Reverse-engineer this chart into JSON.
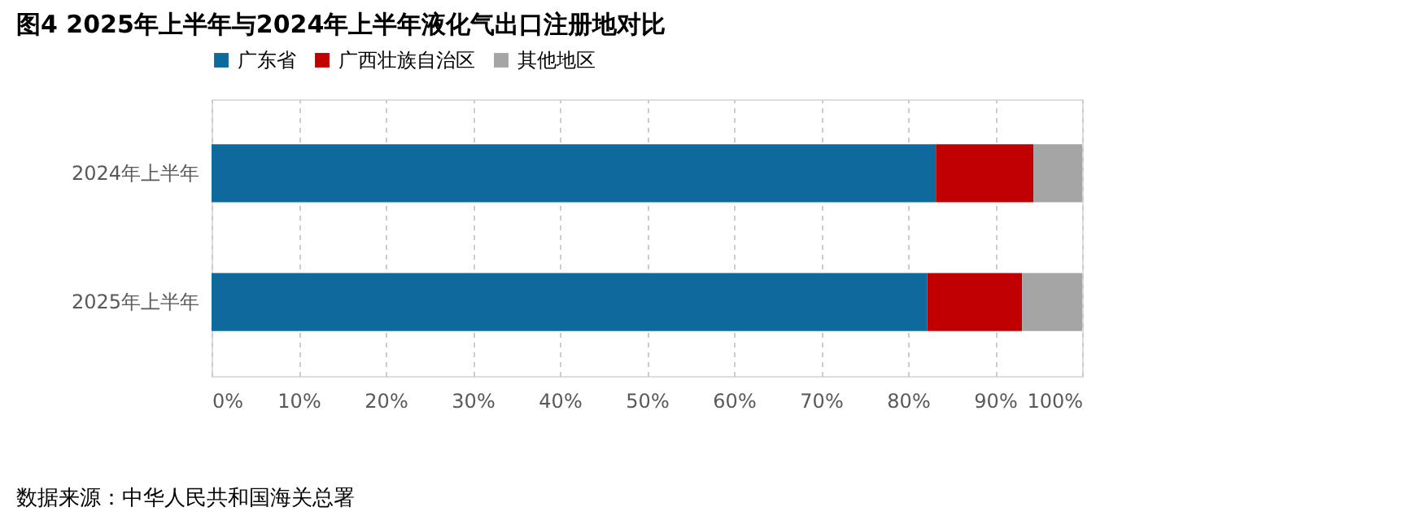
{
  "chart_data": {
    "type": "bar",
    "orientation": "horizontal",
    "stacked": true,
    "title": "图4 2025年上半年与2024年上半年液化气出口注册地对比",
    "categories": [
      "2024年上半年",
      "2025年上半年"
    ],
    "series": [
      {
        "name": "广东省",
        "color": "#0e6a9c",
        "values": [
          83.2,
          82.2
        ]
      },
      {
        "name": "广西壮族自治区",
        "color": "#c00000",
        "values": [
          11.2,
          10.9
        ]
      },
      {
        "name": "其他地区",
        "color": "#a5a5a5",
        "values": [
          5.6,
          6.9
        ]
      }
    ],
    "xlim": [
      0,
      100
    ],
    "xticks": [
      {
        "value": 0,
        "label": "0%"
      },
      {
        "value": 10,
        "label": "10%"
      },
      {
        "value": 20,
        "label": "20%"
      },
      {
        "value": 30,
        "label": "30%"
      },
      {
        "value": 40,
        "label": "40%"
      },
      {
        "value": 50,
        "label": "50%"
      },
      {
        "value": 60,
        "label": "60%"
      },
      {
        "value": 70,
        "label": "70%"
      },
      {
        "value": 80,
        "label": "80%"
      },
      {
        "value": 90,
        "label": "90%"
      },
      {
        "value": 100,
        "label": "100%"
      }
    ],
    "grid": "x",
    "legend": "top",
    "annotations": [
      "数据来源：中华人民共和国海关总署"
    ]
  }
}
